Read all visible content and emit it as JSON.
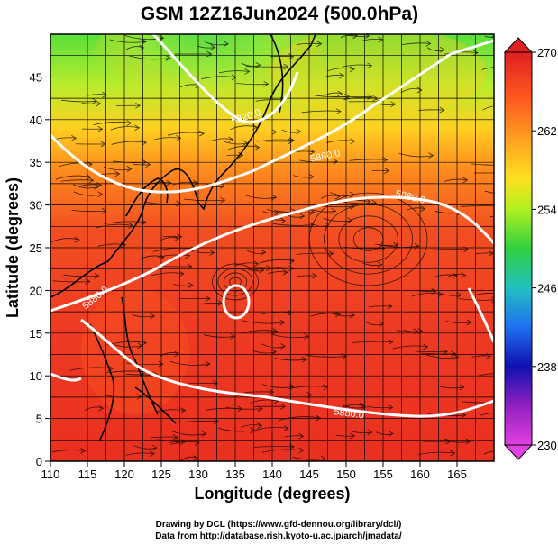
{
  "title": "GSM 12Z16Jun2024 (500.0hPa)",
  "xlabel": "Longitude (degrees)",
  "ylabel": "Latitude  (degrees)",
  "x_ticks": [
    "110",
    "115",
    "120",
    "125",
    "130",
    "135",
    "140",
    "145",
    "150",
    "155",
    "160",
    "165"
  ],
  "y_ticks": [
    "0",
    "5",
    "10",
    "15",
    "20",
    "25",
    "30",
    "35",
    "40",
    "45"
  ],
  "colorbar": {
    "labels": [
      "270",
      "262",
      "254",
      "246",
      "238",
      "230"
    ],
    "colors": [
      "#e02020",
      "#ff7a20",
      "#ffd020",
      "#d8f020",
      "#50d030",
      "#20c0a0",
      "#2080f0",
      "#1010b0",
      "#c020c0",
      "#e040e0"
    ]
  },
  "contour_labels": [
    "5820.0",
    "5880.0",
    "5880.0",
    "5880.0",
    "5880.0",
    "5880.0"
  ],
  "credits": {
    "line1": "Drawing by DCL (https://www.gfd-dennou.org/library/dcl/)",
    "line2": "Data from http://database.rish.kyoto-u.ac.jp/arch/jmadata/"
  },
  "field_colors": {
    "north": "#5fe03a",
    "mid_north": "#d9ee2a",
    "mid": "#ffb020",
    "south_mid": "#ff6020",
    "south": "#ef3020"
  }
}
